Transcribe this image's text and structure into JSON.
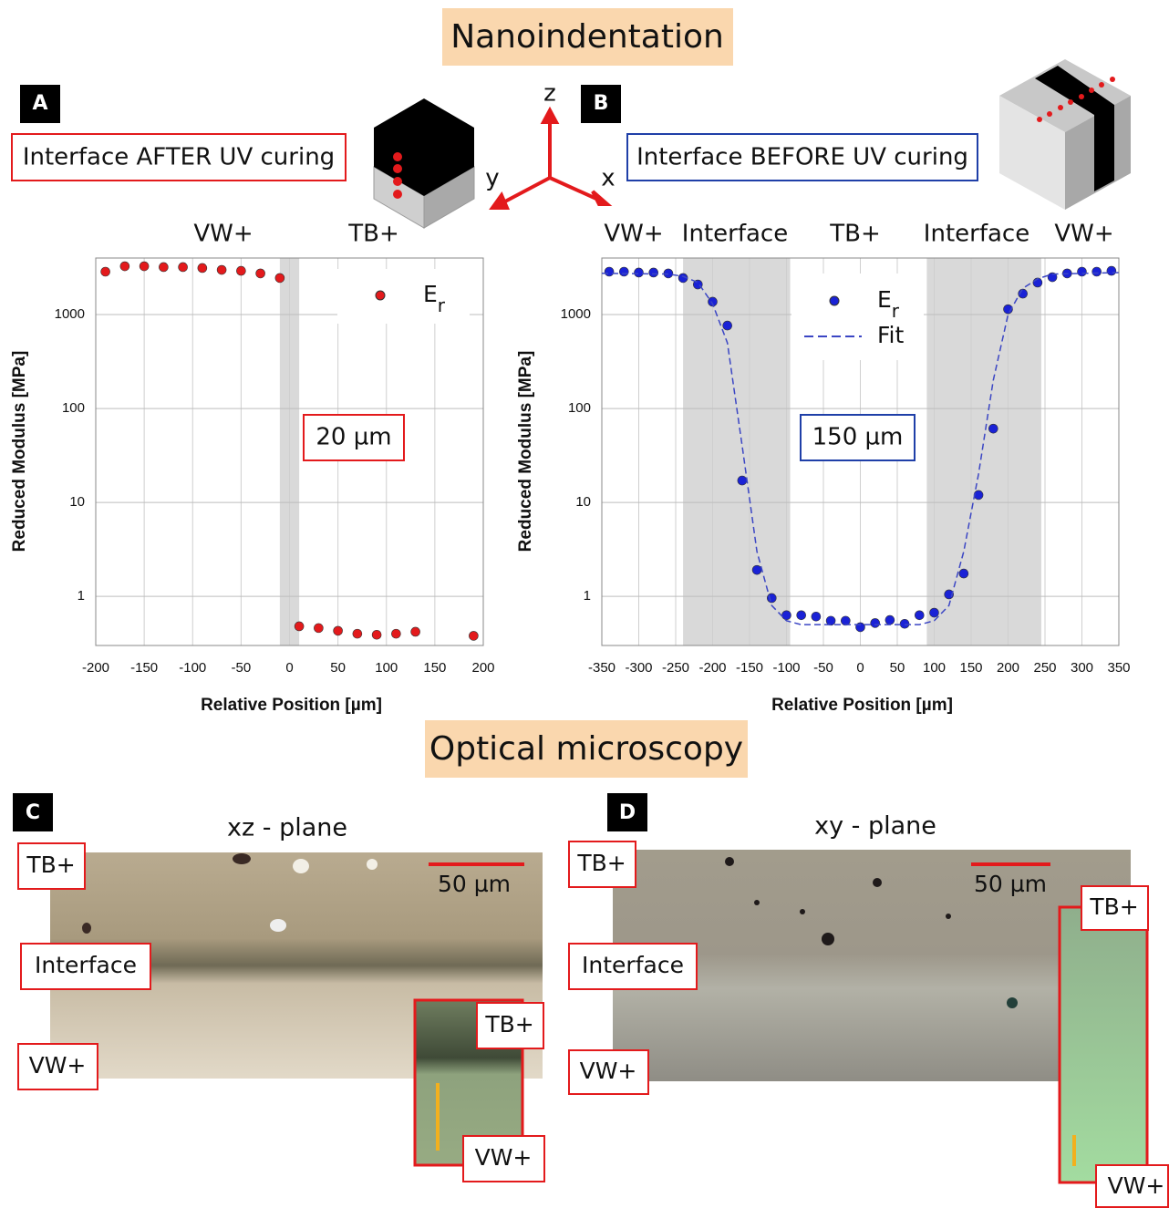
{
  "title": "Nanoindentation",
  "axes": {
    "z": "z",
    "y": "y",
    "x": "x"
  },
  "chart_data": [
    {
      "type": "scatter",
      "panel": "A",
      "caption": "Interface AFTER UV curing",
      "regions": [
        "VW+",
        "TB+"
      ],
      "xlabel": "Relative Position [µm]",
      "ylabel": "Reduced Modulus [MPa]",
      "annotation": "20 µm",
      "log_y": true,
      "grid": true,
      "xlim": [
        -200,
        200
      ],
      "xticks": [
        -200,
        -150,
        -100,
        -50,
        0,
        50,
        100,
        150,
        200
      ],
      "ylim": [
        0.3,
        4000
      ],
      "yticks": [
        1,
        10,
        100,
        1000
      ],
      "shaded_x": [
        [
          -10,
          10
        ]
      ],
      "series": [
        {
          "name": "Er",
          "color": "#e31a1c",
          "mode": "markers",
          "x": [
            -190,
            -170,
            -150,
            -130,
            -110,
            -90,
            -70,
            -50,
            -30,
            -10,
            10,
            30,
            50,
            70,
            90,
            110,
            130,
            190
          ],
          "values": [
            2860,
            3270,
            3270,
            3200,
            3200,
            3130,
            2990,
            2920,
            2740,
            2450,
            0.48,
            0.46,
            0.43,
            0.4,
            0.39,
            0.4,
            0.42,
            0.38
          ]
        }
      ]
    },
    {
      "type": "scatter",
      "panel": "B",
      "caption": "Interface BEFORE UV curing",
      "regions": [
        "VW+",
        "Interface",
        "TB+",
        "Interface",
        "VW+"
      ],
      "xlabel": "Relative Position [µm]",
      "ylabel": "Reduced Modulus [MPa]",
      "annotation": "150 µm",
      "log_y": true,
      "grid": true,
      "xlim": [
        -350,
        350
      ],
      "xticks": [
        -350,
        -300,
        -250,
        -200,
        -150,
        -100,
        -50,
        0,
        50,
        100,
        150,
        200,
        250,
        300,
        350
      ],
      "ylim": [
        0.3,
        4000
      ],
      "yticks": [
        1,
        10,
        100,
        1000
      ],
      "shaded_x": [
        [
          -240,
          -95
        ],
        [
          90,
          245
        ]
      ],
      "series": [
        {
          "name": "Er",
          "color": "#1a22d6",
          "mode": "markers",
          "x": [
            -340,
            -320,
            -300,
            -280,
            -260,
            -240,
            -220,
            -200,
            -180,
            -160,
            -140,
            -120,
            -100,
            -80,
            -60,
            -40,
            -20,
            0,
            20,
            40,
            60,
            80,
            100,
            120,
            140,
            160,
            180,
            200,
            220,
            240,
            260,
            280,
            300,
            320,
            340
          ],
          "values": [
            2860,
            2860,
            2800,
            2800,
            2740,
            2450,
            2090,
            1370,
            764,
            17.1,
            1.91,
            0.96,
            0.63,
            0.63,
            0.61,
            0.55,
            0.55,
            0.47,
            0.52,
            0.56,
            0.51,
            0.63,
            0.67,
            1.05,
            1.75,
            12,
            61,
            1140,
            1670,
            2190,
            2500,
            2740,
            2860,
            2860,
            2920
          ]
        },
        {
          "name": "Fit",
          "color": "#3b46c4",
          "mode": "line",
          "line_style": "dashed",
          "x": [
            -350,
            -260,
            -240,
            -220,
            -200,
            -180,
            -160,
            -140,
            -120,
            -100,
            -80,
            80,
            100,
            120,
            140,
            160,
            180,
            200,
            220,
            240,
            260,
            350
          ],
          "values": [
            2750,
            2700,
            2550,
            2200,
            1300,
            500,
            40,
            3,
            0.8,
            0.55,
            0.5,
            0.5,
            0.55,
            0.8,
            3,
            20,
            200,
            1000,
            1900,
            2400,
            2700,
            2800
          ]
        }
      ]
    }
  ],
  "microscopy": {
    "title": "Optical microscopy",
    "panels": [
      {
        "panel": "C",
        "title": "xz - plane",
        "scale_bar": "50 µm",
        "labels": [
          "TB+",
          "Interface",
          "VW+"
        ],
        "inset_labels": [
          "TB+",
          "VW+"
        ]
      },
      {
        "panel": "D",
        "title": "xy - plane",
        "scale_bar": "50 µm",
        "labels": [
          "TB+",
          "Interface",
          "VW+"
        ],
        "inset_labels": [
          "TB+",
          "VW+"
        ]
      }
    ]
  }
}
